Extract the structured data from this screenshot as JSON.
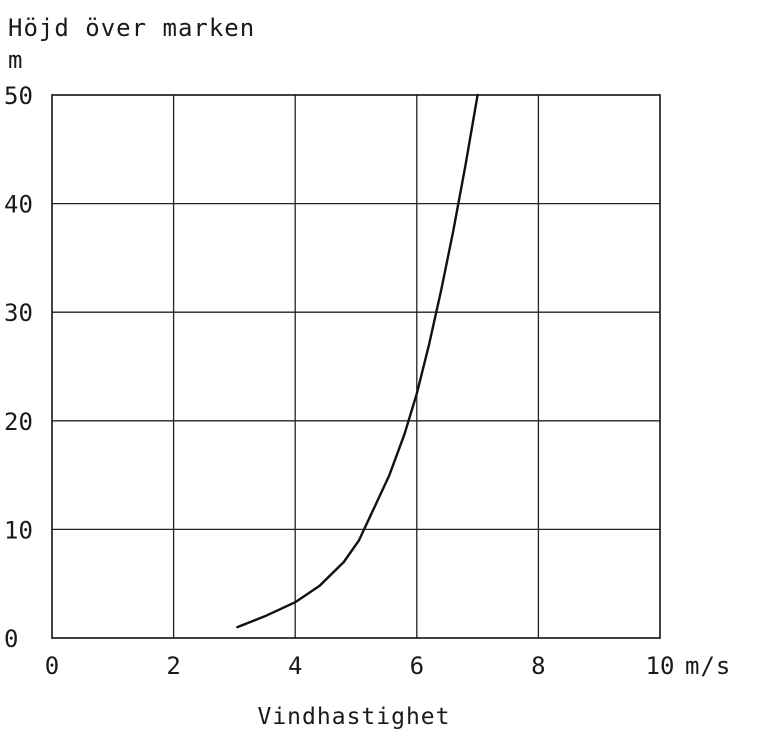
{
  "chart_data": {
    "type": "line",
    "title": "",
    "ylabel": "Höjd över marken",
    "yunit": "m",
    "xlabel": "Vindhastighet",
    "xunit": "m/s",
    "xlim": [
      0,
      10
    ],
    "ylim": [
      0,
      50
    ],
    "xticks": [
      "0",
      "2",
      "4",
      "6",
      "8",
      "10"
    ],
    "yticks": [
      "0",
      "10",
      "20",
      "30",
      "40",
      "50"
    ],
    "grid": true,
    "legend": "none",
    "series": [
      {
        "x": [
          3.05,
          3.5,
          4.0,
          4.4,
          4.8,
          5.05,
          5.3,
          5.55,
          5.8,
          6.0,
          6.2,
          6.4,
          6.6,
          6.8,
          7.0
        ],
        "y": [
          1.0,
          2.0,
          3.3,
          4.8,
          7.0,
          9.0,
          12.0,
          15.0,
          18.8,
          22.5,
          27.0,
          32.0,
          37.5,
          43.5,
          50.0
        ]
      }
    ]
  }
}
